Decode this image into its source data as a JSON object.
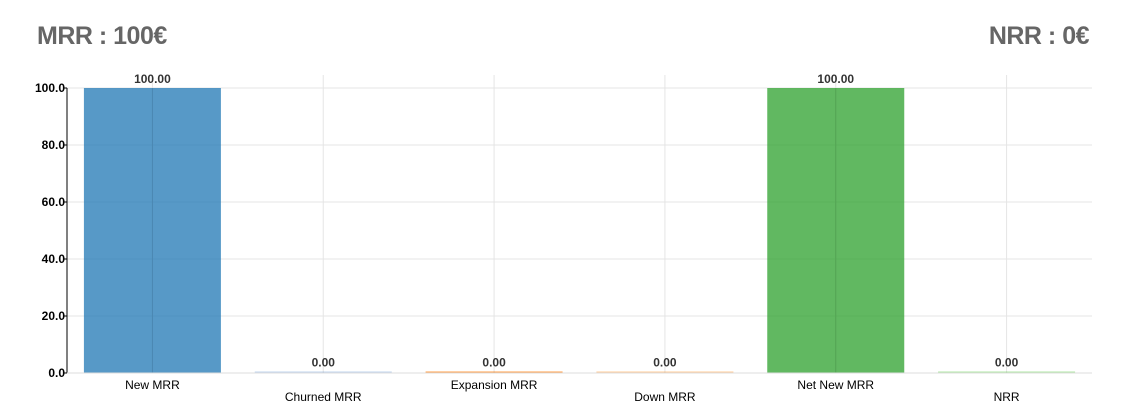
{
  "header": {
    "mrr": "MRR : 100€",
    "nrr": "NRR : 0€"
  },
  "chart_data": {
    "type": "bar",
    "categories": [
      "New MRR",
      "Churned MRR",
      "Expansion MRR",
      "Down MRR",
      "Net New MRR",
      "NRR"
    ],
    "values": [
      100,
      0,
      0,
      0,
      100,
      0
    ],
    "value_labels": [
      "100.00",
      "0.00",
      "0.00",
      "0.00",
      "100.00",
      "0.00"
    ],
    "colors": [
      "#1f77b4",
      "#aec7e8",
      "#ff7f0e",
      "#ffbb78",
      "#2ca02c",
      "#98df8a"
    ],
    "ylim": [
      0,
      100
    ],
    "yticks": [
      "0.0",
      "20.0",
      "40.0",
      "60.0",
      "80.0",
      "100.0"
    ],
    "grid": true,
    "title": "",
    "xlabel": "",
    "ylabel": ""
  }
}
